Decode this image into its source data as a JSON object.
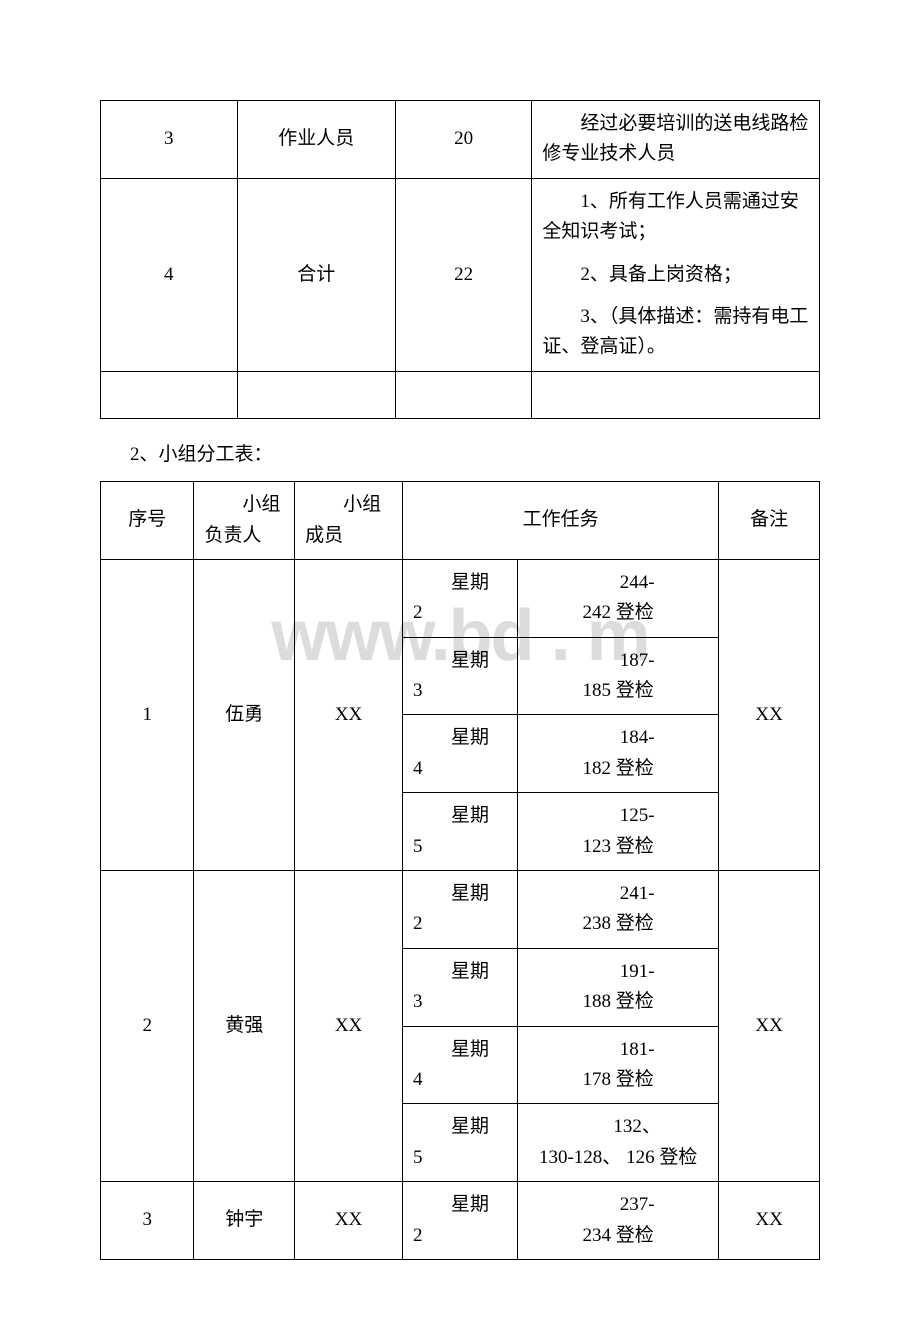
{
  "table1": {
    "rows": [
      {
        "seq": "3",
        "role": "作业人员",
        "count": "20",
        "note": "经过必要培训的送电线路检修专业技术人员"
      },
      {
        "seq": "4",
        "role": "合计",
        "count": "22",
        "notes": [
          "1、所有工作人员需通过安全知识考试；",
          "2、具备上岗资格；",
          "3、（具体描述：需持有电工证、登高证）。"
        ]
      }
    ]
  },
  "section_title": "2、小组分工表：",
  "table2": {
    "header": {
      "seq": "序号",
      "leader_l1": "小组",
      "leader_l2": "负责人",
      "member_l1": "小组",
      "member_l2": "成员",
      "task": "工作任务",
      "note": "备注"
    },
    "groups": [
      {
        "seq": "1",
        "leader": "伍勇",
        "member": "XX",
        "note": "XX",
        "tasks": [
          {
            "day_l1": "星期",
            "day_l2": "2",
            "detail_l1": "244-",
            "detail_l2": "242 登检"
          },
          {
            "day_l1": "星期",
            "day_l2": "3",
            "detail_l1": "187-",
            "detail_l2": "185 登检"
          },
          {
            "day_l1": "星期",
            "day_l2": "4",
            "detail_l1": "184-",
            "detail_l2": "182 登检"
          },
          {
            "day_l1": "星期",
            "day_l2": "5",
            "detail_l1": "125-",
            "detail_l2": "123 登检"
          }
        ]
      },
      {
        "seq": "2",
        "leader": "黄强",
        "member": "XX",
        "note": "XX",
        "tasks": [
          {
            "day_l1": "星期",
            "day_l2": "2",
            "detail_l1": "241-",
            "detail_l2": "238 登检"
          },
          {
            "day_l1": "星期",
            "day_l2": "3",
            "detail_l1": "191-",
            "detail_l2": "188 登检"
          },
          {
            "day_l1": "星期",
            "day_l2": "4",
            "detail_l1": "181-",
            "detail_l2": "178 登检"
          },
          {
            "day_l1": "星期",
            "day_l2": "5",
            "detail_l1": "132、",
            "detail_l2": "130-128、",
            "detail_l3": "126 登检"
          }
        ]
      },
      {
        "seq": "3",
        "leader": "钟宇",
        "member": "XX",
        "note": "XX",
        "tasks": [
          {
            "day_l1": "星期",
            "day_l2": "2",
            "detail_l1": "237-",
            "detail_l2": "234 登检"
          }
        ]
      }
    ]
  },
  "watermark": "www.bd     .  m"
}
